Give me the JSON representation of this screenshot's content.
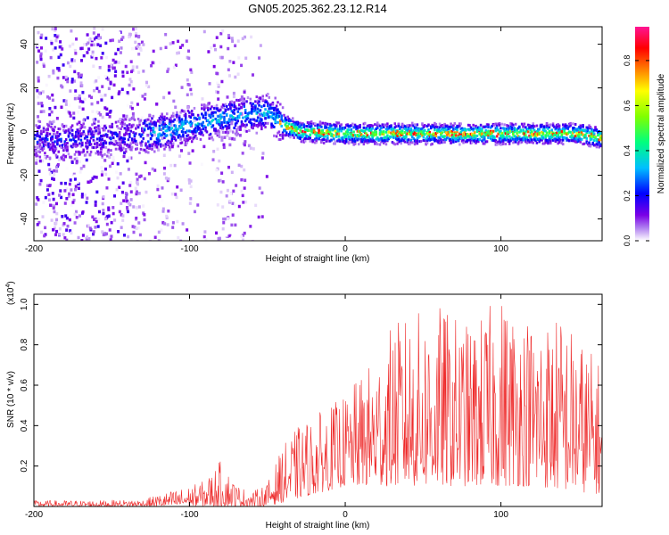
{
  "title": "GN05.2025.362.23.12.R14",
  "chart_data": [
    {
      "type": "heatmap",
      "name": "spectrogram",
      "xlabel": "Height of straight line (km)",
      "ylabel": "Frequency (Hz)",
      "xlim": [
        -200,
        165
      ],
      "ylim": [
        -50,
        48
      ],
      "xticks": [
        -200,
        -100,
        0,
        100
      ],
      "yticks": [
        -40,
        -20,
        0,
        20,
        40
      ],
      "xtick_labels": [
        "-200",
        "-100",
        "0",
        "100"
      ],
      "ytick_labels": [
        "-40",
        "-20",
        "0",
        "20",
        "40"
      ],
      "ridge": {
        "x": [
          -200,
          -180,
          -160,
          -140,
          -120,
          -100,
          -80,
          -60,
          -50,
          -40,
          -30,
          0,
          50,
          100,
          150,
          165
        ],
        "freq_hz": [
          -4,
          -4,
          -3,
          -2,
          0,
          3,
          6,
          8,
          9,
          3,
          0,
          -1,
          -1,
          -1,
          -1,
          -3
        ]
      },
      "colorbar": {
        "label": "Normalized spectral amplitude",
        "range": [
          0,
          0.95
        ],
        "ticks": [
          0.0,
          0.2,
          0.4,
          0.6,
          0.8
        ],
        "tick_labels": [
          "0.0",
          "0.2",
          "0.4",
          "0.6",
          "0.8"
        ],
        "colors": [
          "#ffffff",
          "#7a00e6",
          "#0000ff",
          "#00bfff",
          "#00ff7f",
          "#80ff00",
          "#ffff00",
          "#ff8000",
          "#ff0000",
          "#ff1493"
        ]
      }
    },
    {
      "type": "line",
      "name": "snr",
      "xlabel": "Height of straight line (km)",
      "ylabel": "SNR (10 * v/v)",
      "scale_label": "(x10",
      "scale_exp": "4",
      "scale_close": ")",
      "xlim": [
        -200,
        165
      ],
      "ylim": [
        0,
        1.05
      ],
      "xticks": [
        -200,
        -100,
        0,
        100
      ],
      "yticks": [
        0.2,
        0.4,
        0.6,
        0.8,
        1.0
      ],
      "xtick_labels": [
        "-200",
        "-100",
        "0",
        "100"
      ],
      "ytick_labels": [
        "0.2",
        "0.4",
        "0.6",
        "0.8",
        "1.0"
      ],
      "color": "#ee2a2a",
      "envelope": {
        "x": [
          -200,
          -160,
          -130,
          -120,
          -100,
          -90,
          -80,
          -70,
          -60,
          -50,
          -40,
          -30,
          -20,
          -10,
          0,
          10,
          20,
          30,
          40,
          60,
          80,
          100,
          120,
          140,
          165
        ],
        "min": [
          0.0,
          0.0,
          0.0,
          0.0,
          0.0,
          0.0,
          0.0,
          0.0,
          0.0,
          0.0,
          0.02,
          0.04,
          0.06,
          0.08,
          0.1,
          0.1,
          0.1,
          0.1,
          0.1,
          0.1,
          0.1,
          0.1,
          0.1,
          0.08,
          0.06
        ],
        "max": [
          0.03,
          0.03,
          0.035,
          0.06,
          0.1,
          0.13,
          0.23,
          0.11,
          0.07,
          0.12,
          0.3,
          0.4,
          0.45,
          0.5,
          0.55,
          0.65,
          0.75,
          0.9,
          0.95,
          1.0,
          0.9,
          1.05,
          0.95,
          0.95,
          0.7
        ]
      }
    }
  ]
}
